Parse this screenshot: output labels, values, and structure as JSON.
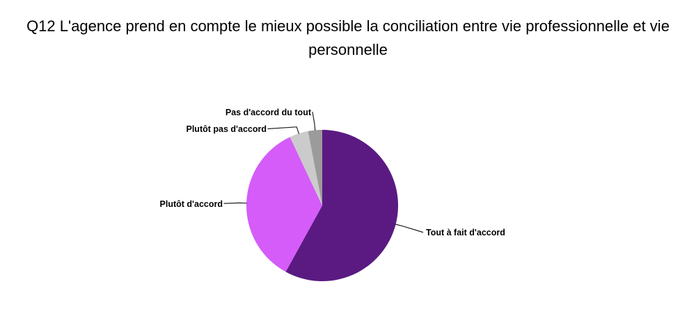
{
  "chart_data": {
    "type": "pie",
    "title": "Q12 L'agence prend en compte le mieux possible la conciliation entre vie professionnelle et vie personnelle",
    "slices": [
      {
        "label": "Tout à fait d'accord",
        "value": 58,
        "color": "#5A1A82"
      },
      {
        "label": "Plutôt d'accord",
        "value": 35,
        "color": "#D55CF8"
      },
      {
        "label": "Plutôt pas d'accord",
        "value": 4,
        "color": "#CBCBCB"
      },
      {
        "label": "Pas d'accord du tout",
        "value": 3,
        "color": "#9B9B9B"
      }
    ],
    "values_are_percent_estimates": true,
    "start_angle_deg": 0,
    "direction": "clockwise",
    "legend_position": "outside-labels-with-leader-lines",
    "data_labels_shown": false,
    "connector_color": "#222222",
    "text_color": "#000000",
    "background_color": "#FFFFFF"
  }
}
